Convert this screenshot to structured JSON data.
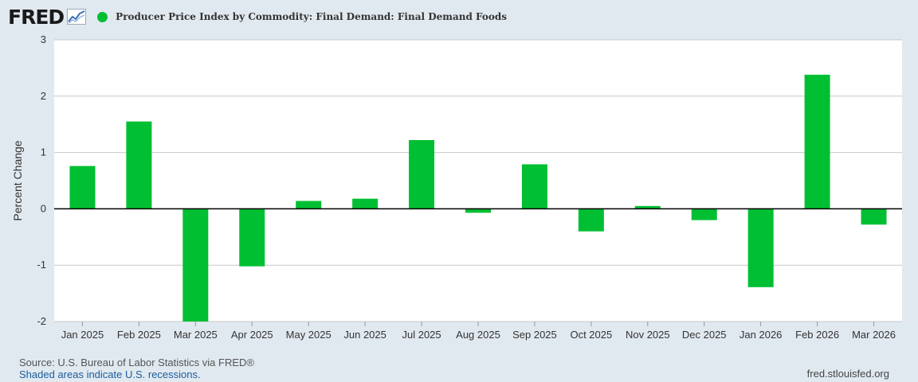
{
  "header": {
    "logo": "FRED",
    "title": "Producer Price Index by Commodity: Final Demand: Final Demand Foods"
  },
  "colors": {
    "series": "#00bf32",
    "background": "#e1e9f0",
    "plot": "#ffffff",
    "grid": "#c8c8c8"
  },
  "chart_data": {
    "type": "bar",
    "title": "Producer Price Index by Commodity: Final Demand: Final Demand Foods",
    "xlabel": "",
    "ylabel": "Percent Change",
    "ylim": [
      -2,
      3
    ],
    "yticks": [
      3,
      2,
      1,
      0,
      -1,
      -2
    ],
    "grid": true,
    "categories": [
      "Jan 2025",
      "Feb 2025",
      "Mar 2025",
      "Apr 2025",
      "May 2025",
      "Jun 2025",
      "Jul 2025",
      "Aug 2025",
      "Sep 2025",
      "Oct 2025",
      "Nov 2025",
      "Dec 2025",
      "Jan 2026",
      "Feb 2026",
      "Mar 2026"
    ],
    "series": [
      {
        "name": "Producer Price Index by Commodity: Final Demand: Final Demand Foods",
        "values": [
          0.76,
          1.55,
          -2.0,
          -1.02,
          0.14,
          0.18,
          1.22,
          -0.07,
          0.79,
          -0.4,
          0.05,
          -0.2,
          -1.39,
          2.38,
          -0.28
        ]
      }
    ]
  },
  "footer": {
    "source": "Source: U.S. Bureau of Labor Statistics via FRED®",
    "recession_note": "Shaded areas indicate U.S. recessions.",
    "site": "fred.stlouisfed.org"
  }
}
